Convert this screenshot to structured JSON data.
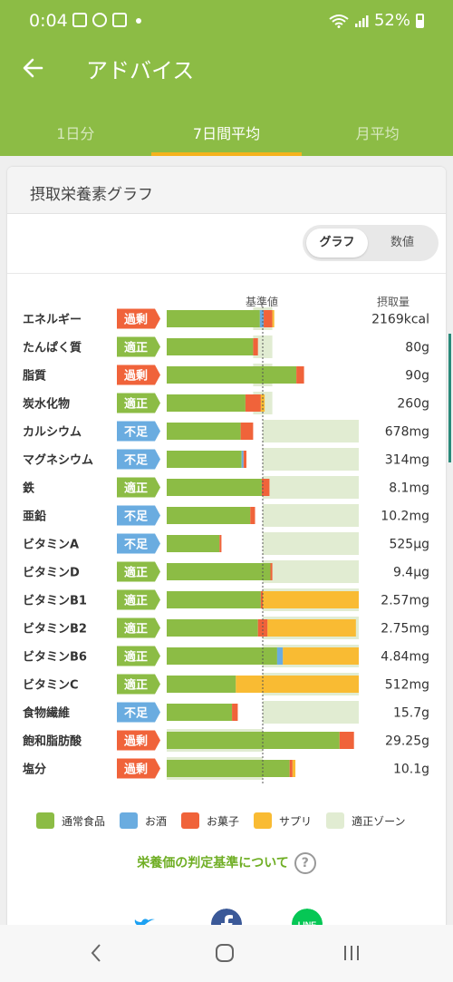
{
  "status": {
    "time": "0:04",
    "battery": "52%"
  },
  "header": {
    "title": "アドバイス",
    "tabs": [
      {
        "label": "1日分",
        "active": false
      },
      {
        "label": "7日間平均",
        "active": true
      },
      {
        "label": "月平均",
        "active": false
      }
    ]
  },
  "card": {
    "title": "摂取栄養素グラフ",
    "toggle": {
      "graph": "グラフ",
      "values": "数値",
      "selected": "グラフ"
    },
    "col_baseline": "基準値",
    "col_intake": "摂取量"
  },
  "colors": {
    "normal_food": "#8cbc45",
    "alcohol": "#6aace0",
    "sweets": "#f0633a",
    "supplement": "#f9bb33",
    "proper_zone": "#e1ecd2",
    "badge_excess": "#f0633a",
    "badge_proper": "#8cbc45",
    "badge_deficient": "#6aace0"
  },
  "chart_data": {
    "type": "bar",
    "orientation": "horizontal-stacked",
    "baseline_label": "基準値",
    "value_label": "摂取量",
    "scale_note": "percent of reference value (baseline = 100)",
    "series": [
      {
        "name": "通常食品"
      },
      {
        "name": "お酒"
      },
      {
        "name": "お菓子"
      },
      {
        "name": "サプリ"
      },
      {
        "name": "適正ゾーン"
      }
    ],
    "rows": [
      {
        "name": "エネルギー",
        "status": "過剰",
        "value": "2169kcal",
        "food": 97,
        "alcohol": 4,
        "sweets": 9,
        "supplement": 2,
        "zone": [
          90,
          110
        ]
      },
      {
        "name": "たんぱく質",
        "status": "適正",
        "value": "80g",
        "food": 90,
        "alcohol": 0,
        "sweets": 5,
        "supplement": 0,
        "zone": [
          90,
          110
        ]
      },
      {
        "name": "脂質",
        "status": "過剰",
        "value": "90g",
        "food": 135,
        "alcohol": 0,
        "sweets": 8,
        "supplement": 0,
        "zone": [
          90,
          110
        ]
      },
      {
        "name": "炭水化物",
        "status": "適正",
        "value": "260g",
        "food": 82,
        "alcohol": 0,
        "sweets": 16,
        "supplement": 4,
        "zone": [
          90,
          110
        ]
      },
      {
        "name": "カルシウム",
        "status": "不足",
        "value": "678mg",
        "food": 77,
        "alcohol": 0,
        "sweets": 13,
        "supplement": 0,
        "zone": [
          100,
          200
        ]
      },
      {
        "name": "マグネシウム",
        "status": "不足",
        "value": "314mg",
        "food": 78,
        "alcohol": 2,
        "sweets": 3,
        "supplement": 0,
        "zone": [
          100,
          200
        ]
      },
      {
        "name": "鉄",
        "status": "適正",
        "value": "8.1mg",
        "food": 99,
        "alcohol": 0,
        "sweets": 8,
        "supplement": 0,
        "zone": [
          100,
          200
        ]
      },
      {
        "name": "亜鉛",
        "status": "不足",
        "value": "10.2mg",
        "food": 87,
        "alcohol": 0,
        "sweets": 5,
        "supplement": 0,
        "zone": [
          100,
          200
        ]
      },
      {
        "name": "ビタミンA",
        "status": "不足",
        "value": "525μg",
        "food": 55,
        "alcohol": 0,
        "sweets": 2,
        "supplement": 0,
        "zone": [
          100,
          200
        ]
      },
      {
        "name": "ビタミンD",
        "status": "適正",
        "value": "9.4μg",
        "food": 108,
        "alcohol": 0,
        "sweets": 2,
        "supplement": 0,
        "zone": [
          100,
          200
        ]
      },
      {
        "name": "ビタミンB1",
        "status": "適正",
        "value": "2.57mg",
        "food": 98,
        "alcohol": 0,
        "sweets": 2,
        "supplement": 100,
        "zone": [
          100,
          200
        ]
      },
      {
        "name": "ビタミンB2",
        "status": "適正",
        "value": "2.75mg",
        "food": 95,
        "alcohol": 0,
        "sweets": 10,
        "supplement": 92,
        "zone": [
          100,
          200
        ]
      },
      {
        "name": "ビタミンB6",
        "status": "適正",
        "value": "4.84mg",
        "food": 115,
        "alcohol": 6,
        "sweets": 0,
        "supplement": 79,
        "zone": [
          100,
          200
        ]
      },
      {
        "name": "ビタミンC",
        "status": "適正",
        "value": "512mg",
        "food": 72,
        "alcohol": 0,
        "sweets": 0,
        "supplement": 128,
        "zone": [
          100,
          200
        ]
      },
      {
        "name": "食物繊維",
        "status": "不足",
        "value": "15.7g",
        "food": 68,
        "alcohol": 0,
        "sweets": 6,
        "supplement": 0,
        "zone": [
          100,
          200
        ]
      },
      {
        "name": "飽和脂肪酸",
        "status": "過剰",
        "value": "29.25g",
        "food": 180,
        "alcohol": 0,
        "sweets": 15,
        "supplement": 0,
        "zone": [
          0,
          100
        ]
      },
      {
        "name": "塩分",
        "status": "過剰",
        "value": "10.1g",
        "food": 128,
        "alcohol": 0,
        "sweets": 3,
        "supplement": 3,
        "zone": [
          0,
          100
        ]
      }
    ]
  },
  "legend": [
    {
      "label": "通常食品",
      "color": "#8cbc45"
    },
    {
      "label": "お酒",
      "color": "#6aace0"
    },
    {
      "label": "お菓子",
      "color": "#f0633a"
    },
    {
      "label": "サプリ",
      "color": "#f9bb33"
    },
    {
      "label": "適正ゾーン",
      "color": "#e1ecd2"
    }
  ],
  "footer": {
    "criteria_link": "栄養価の判定基準について",
    "help_icon": "?",
    "share": [
      {
        "icon": "twitter-icon",
        "color": "#1da1f2"
      },
      {
        "icon": "facebook-icon",
        "color": "#3b5998"
      },
      {
        "icon": "line-icon",
        "color": "#06c755",
        "text": "LINE"
      }
    ]
  }
}
